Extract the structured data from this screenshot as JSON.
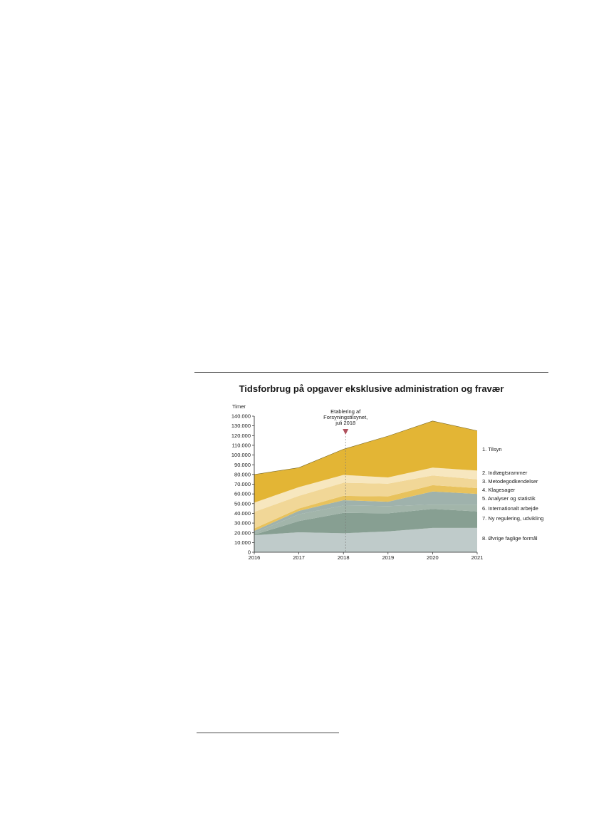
{
  "chart_data": {
    "type": "area",
    "stacked": true,
    "title": "Tidsforbrug på opgaver eksklusive administration og fravær",
    "ylabel": "Timer",
    "xlabel": "",
    "x": [
      "2016",
      "2017",
      "2018",
      "2019",
      "2020",
      "2021"
    ],
    "ylim": [
      0,
      140000
    ],
    "yticks": [
      "0",
      "10.000",
      "20.000",
      "30.000",
      "40.000",
      "50.000",
      "60.000",
      "70.000",
      "80.000",
      "90.000",
      "100.000",
      "110.000",
      "120.000",
      "130.000",
      "140.000"
    ],
    "legend_placement": "right, inline labels",
    "series": [
      {
        "name": "8. Øvrige faglige formål",
        "color": "#bfcbca",
        "values": [
          17500,
          20500,
          19500,
          21500,
          25000,
          25000
        ]
      },
      {
        "name": "7. Ny regulering, udvikling",
        "color": "#879f92",
        "values": [
          500,
          11500,
          21000,
          18500,
          19500,
          17000
        ]
      },
      {
        "name": "6. Internationalt arbejde",
        "color": "#a2b5aa",
        "values": [
          2000,
          7000,
          7500,
          7500,
          4500,
          7000
        ]
      },
      {
        "name": "5. Analyser og statistik",
        "color": "#9fb2ac",
        "values": [
          2000,
          3500,
          5500,
          4500,
          13500,
          11000
        ]
      },
      {
        "name": "4. Klagesager",
        "color": "#e8c25c",
        "values": [
          2500,
          2500,
          4500,
          5500,
          6500,
          6000
        ]
      },
      {
        "name": "3. Metodegodkendelser",
        "color": "#f1d797",
        "values": [
          17000,
          13000,
          13500,
          13000,
          10000,
          9000
        ]
      },
      {
        "name": "2. Indtægtsrammer",
        "color": "#f7e7bf",
        "values": [
          9500,
          9000,
          8000,
          6500,
          8000,
          9000
        ]
      },
      {
        "name": "1. Tilsyn",
        "color": "#e3b535",
        "values": [
          29000,
          20000,
          26500,
          42500,
          48000,
          41000
        ]
      }
    ],
    "annotation": {
      "lines": [
        "Etablering af",
        "Forsyningstilsynet,",
        "juli 2018"
      ],
      "x": 2018.0,
      "marker_color": "#b0525e"
    }
  }
}
